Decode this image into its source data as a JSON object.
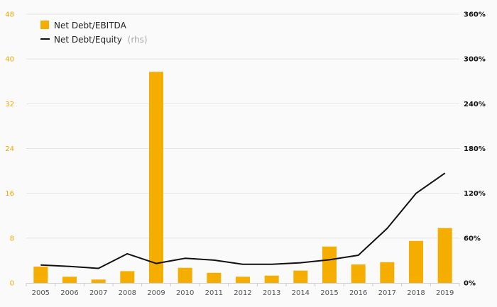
{
  "chart_data": {
    "type": "bar",
    "categories": [
      "2005",
      "2006",
      "2007",
      "2008",
      "2009",
      "2010",
      "2011",
      "2012",
      "2013",
      "2014",
      "2015",
      "2016",
      "2017",
      "2018",
      "2019"
    ],
    "series": [
      {
        "name": "Net Debt/EBITDA",
        "type": "bar",
        "axis": "left",
        "color": "#f5ad00",
        "values": [
          2.9,
          1.1,
          0.6,
          2.1,
          37.7,
          2.7,
          1.8,
          1.1,
          1.3,
          2.2,
          6.5,
          3.3,
          3.7,
          7.5,
          9.8
        ]
      },
      {
        "name": "Net Debt/Equity",
        "note": "(rhs)",
        "type": "line",
        "axis": "right",
        "color": "#111111",
        "values": [
          24,
          22,
          19.5,
          39,
          26,
          33,
          30.5,
          25,
          25,
          27,
          31,
          37,
          73,
          120,
          147
        ]
      }
    ],
    "left_axis": {
      "ylim": [
        0,
        48
      ],
      "ticks": [
        "0",
        "8",
        "16",
        "24",
        "32",
        "40",
        "48"
      ],
      "tick_values": [
        0,
        8,
        16,
        24,
        32,
        40,
        48
      ]
    },
    "right_axis": {
      "ylim": [
        0,
        360
      ],
      "ticks": [
        "0%",
        "60%",
        "120%",
        "180%",
        "240%",
        "300%",
        "360%"
      ],
      "tick_values": [
        0,
        60,
        120,
        180,
        240,
        300,
        360
      ]
    },
    "title": "",
    "xlabel": "",
    "ylabel": "",
    "grid": true,
    "legend": {
      "position": "top-left"
    },
    "colors": {
      "left_tick": "#f0a800",
      "right_tick": "#111111",
      "grid": "#e4e4e4",
      "axis": "#cccccc"
    }
  }
}
